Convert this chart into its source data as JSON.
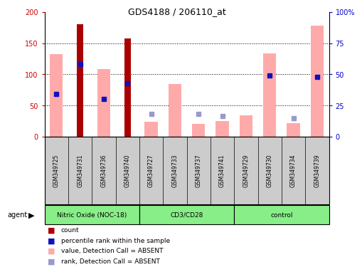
{
  "title": "GDS4188 / 206110_at",
  "samples": [
    "GSM349725",
    "GSM349731",
    "GSM349736",
    "GSM349740",
    "GSM349727",
    "GSM349733",
    "GSM349737",
    "GSM349741",
    "GSM349729",
    "GSM349730",
    "GSM349734",
    "GSM349739"
  ],
  "groups": [
    {
      "label": "Nitric Oxide (NOC-18)",
      "start": 0,
      "end": 3
    },
    {
      "label": "CD3/CD28",
      "start": 4,
      "end": 7
    },
    {
      "label": "control",
      "start": 8,
      "end": 11
    }
  ],
  "red_bars": [
    0,
    180,
    0,
    158,
    0,
    0,
    0,
    0,
    0,
    0,
    0,
    0
  ],
  "blue_squares_y": [
    68,
    116,
    60,
    85,
    0,
    0,
    0,
    0,
    0,
    98,
    0,
    96
  ],
  "pink_bars": [
    132,
    0,
    108,
    0,
    24,
    84,
    20,
    25,
    34,
    134,
    22,
    178
  ],
  "lavender_sq_y": [
    0,
    0,
    0,
    0,
    36,
    0,
    36,
    33,
    0,
    0,
    30,
    0
  ],
  "ylim": [
    0,
    200
  ],
  "yticks_left": [
    0,
    50,
    100,
    150,
    200
  ],
  "yticks_right": [
    0,
    50,
    100,
    150,
    200
  ],
  "ytick_right_labels": [
    "0",
    "25",
    "50",
    "75",
    "100%"
  ],
  "left_tick_color": "#cc0000",
  "right_tick_color": "#0000cc",
  "red_color": "#aa0000",
  "pink_color": "#ffaaaa",
  "blue_color": "#1111bb",
  "lavender_color": "#9999cc",
  "green_color": "#88ee88",
  "gray_color": "#cccccc",
  "legend": [
    {
      "color": "#aa0000",
      "label": "count"
    },
    {
      "color": "#1111bb",
      "label": "percentile rank within the sample"
    },
    {
      "color": "#ffaaaa",
      "label": "value, Detection Call = ABSENT"
    },
    {
      "color": "#9999cc",
      "label": "rank, Detection Call = ABSENT"
    }
  ]
}
